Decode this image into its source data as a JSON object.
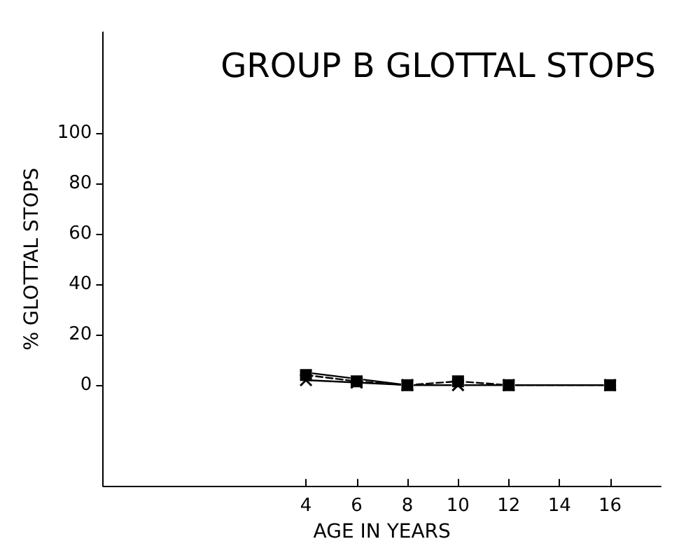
{
  "chart_data": {
    "type": "line",
    "title": "GROUP B GLOTTAL STOPS",
    "xlabel": "AGE IN YEARS",
    "ylabel": "% GLOTTAL STOPS",
    "x": [
      4,
      6,
      8,
      10,
      12,
      16
    ],
    "series": [
      {
        "color": "#000000",
        "marker": "circle",
        "line_style": "solid",
        "values": [
          5,
          2.5,
          0,
          0,
          0,
          0
        ]
      },
      {
        "color": "#000000",
        "marker": "square",
        "line_style": "dashed",
        "values": [
          4,
          1.5,
          0,
          1.5,
          0,
          0
        ]
      },
      {
        "color": "#000000",
        "marker": "cross",
        "line_style": "solid",
        "values": [
          2,
          1,
          0,
          0,
          0,
          0
        ]
      }
    ],
    "xlim": [
      -4,
      18
    ],
    "xticks": [
      4,
      6,
      8,
      10,
      12,
      14,
      16
    ],
    "ylim": [
      -40,
      140
    ],
    "yticks": [
      0,
      20,
      40,
      60,
      80,
      100
    ],
    "grid": false
  }
}
